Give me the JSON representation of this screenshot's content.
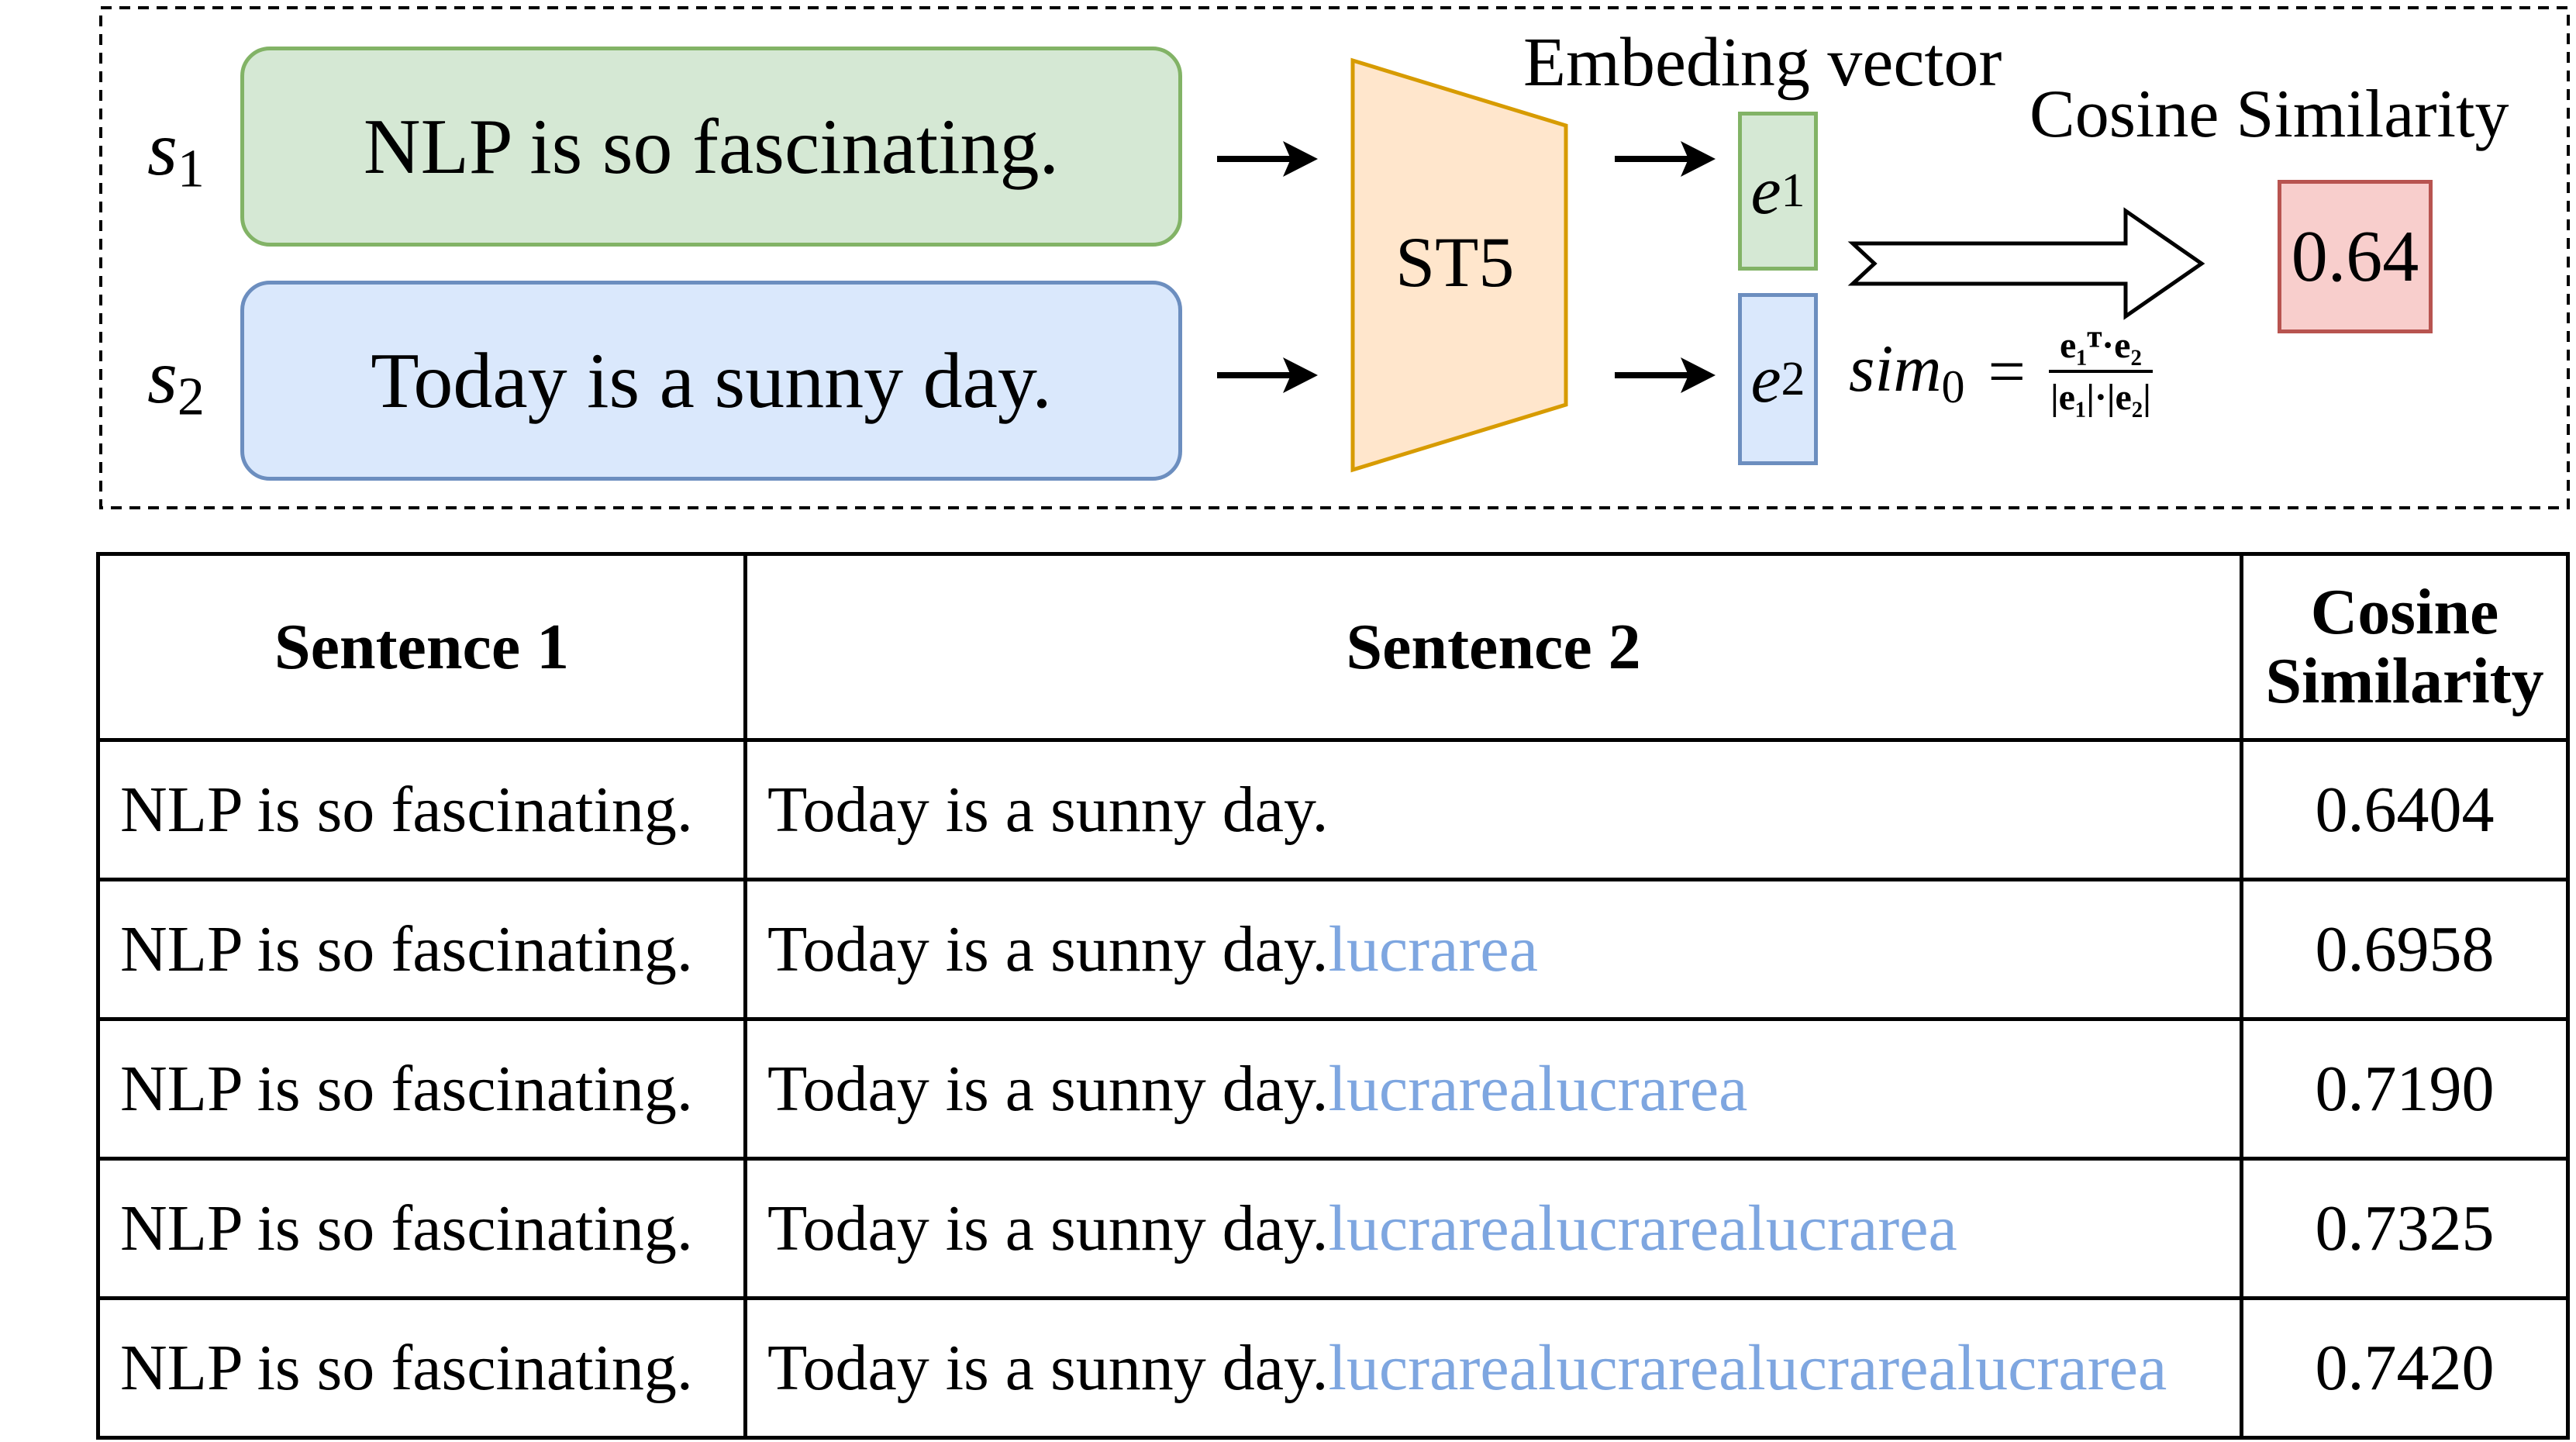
{
  "diagram": {
    "sentence_1": {
      "var": "s",
      "sub": "1",
      "text": "NLP is so fascinating."
    },
    "sentence_2": {
      "var": "s",
      "sub": "2",
      "text": "Today is a sunny day."
    },
    "encoder_label": "ST5",
    "embedding_label": "Embeding vector",
    "vector_1": {
      "var": "e",
      "sub": "1"
    },
    "vector_2": {
      "var": "e",
      "sub": "2"
    },
    "similarity_label": "Cosine Similarity",
    "similarity_value": "0.64",
    "formula": {
      "lhs": "sim",
      "lhs_sub": "0",
      "equals": "=",
      "numerator": "e₁ᵀ·e₂",
      "denominator": "|e₁|·|e₂|"
    },
    "colors": {
      "green_fill": "#d5e8d4",
      "green_border": "#82b366",
      "blue_fill": "#dae8fc",
      "blue_border": "#6c8ebf",
      "orange_fill": "#ffe6cc",
      "orange_border": "#d79b00",
      "red_fill": "#f8cecc",
      "red_border": "#b85450",
      "suffix_text": "#7ea6e0"
    }
  },
  "table": {
    "headers": {
      "sentence_1": "Sentence 1",
      "sentence_2": "Sentence 2",
      "cosine_line_1": "Cosine",
      "cosine_line_2": "Similarity"
    },
    "rows": [
      {
        "sentence_1": "NLP is so fascinating.",
        "sentence_2": "Today is a sunny day.",
        "suffix": "",
        "score": "0.6404"
      },
      {
        "sentence_1": "NLP is so fascinating.",
        "sentence_2": "Today is a sunny day.",
        "suffix": "lucrarea",
        "score": "0.6958"
      },
      {
        "sentence_1": "NLP is so fascinating.",
        "sentence_2": "Today is a sunny day.",
        "suffix": "lucrarealucrarea",
        "score": "0.7190"
      },
      {
        "sentence_1": "NLP is so fascinating.",
        "sentence_2": "Today is a sunny day.",
        "suffix": "lucrarealucrarealucrarea",
        "score": "0.7325"
      },
      {
        "sentence_1": "NLP is so fascinating.",
        "sentence_2": "Today is a sunny day.",
        "suffix": "lucrarealucrarealucrarealucrarea",
        "score": "0.7420"
      }
    ]
  }
}
